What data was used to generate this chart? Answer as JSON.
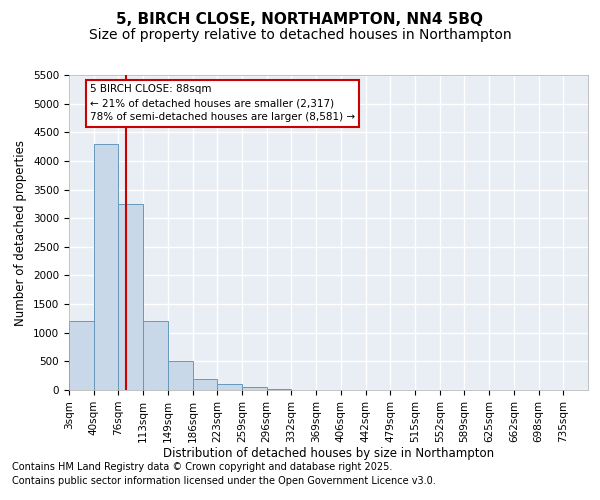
{
  "title1": "5, BIRCH CLOSE, NORTHAMPTON, NN4 5BQ",
  "title2": "Size of property relative to detached houses in Northampton",
  "xlabel": "Distribution of detached houses by size in Northampton",
  "ylabel": "Number of detached properties",
  "bin_labels": [
    "3sqm",
    "40sqm",
    "76sqm",
    "113sqm",
    "149sqm",
    "186sqm",
    "223sqm",
    "259sqm",
    "296sqm",
    "332sqm",
    "369sqm",
    "406sqm",
    "442sqm",
    "479sqm",
    "515sqm",
    "552sqm",
    "589sqm",
    "625sqm",
    "662sqm",
    "698sqm",
    "735sqm"
  ],
  "counts": [
    1200,
    4300,
    3250,
    1200,
    500,
    200,
    100,
    50,
    10,
    0,
    0,
    0,
    0,
    0,
    0,
    0,
    0,
    0,
    0,
    0,
    0
  ],
  "bar_color": "#c8d8e8",
  "bar_edge_color": "#6699bb",
  "bg_color": "#e8eef4",
  "grid_color": "#ffffff",
  "vline_pos": 2.324,
  "vline_color": "#cc0000",
  "annotation_text": "5 BIRCH CLOSE: 88sqm\n← 21% of detached houses are smaller (2,317)\n78% of semi-detached houses are larger (8,581) →",
  "annotation_box_color": "#cc0000",
  "ylim": [
    0,
    5500
  ],
  "yticks": [
    0,
    500,
    1000,
    1500,
    2000,
    2500,
    3000,
    3500,
    4000,
    4500,
    5000,
    5500
  ],
  "footer1": "Contains HM Land Registry data © Crown copyright and database right 2025.",
  "footer2": "Contains public sector information licensed under the Open Government Licence v3.0.",
  "title1_fontsize": 11,
  "title2_fontsize": 10,
  "axis_fontsize": 8.5,
  "tick_fontsize": 7.5,
  "footer_fontsize": 7
}
